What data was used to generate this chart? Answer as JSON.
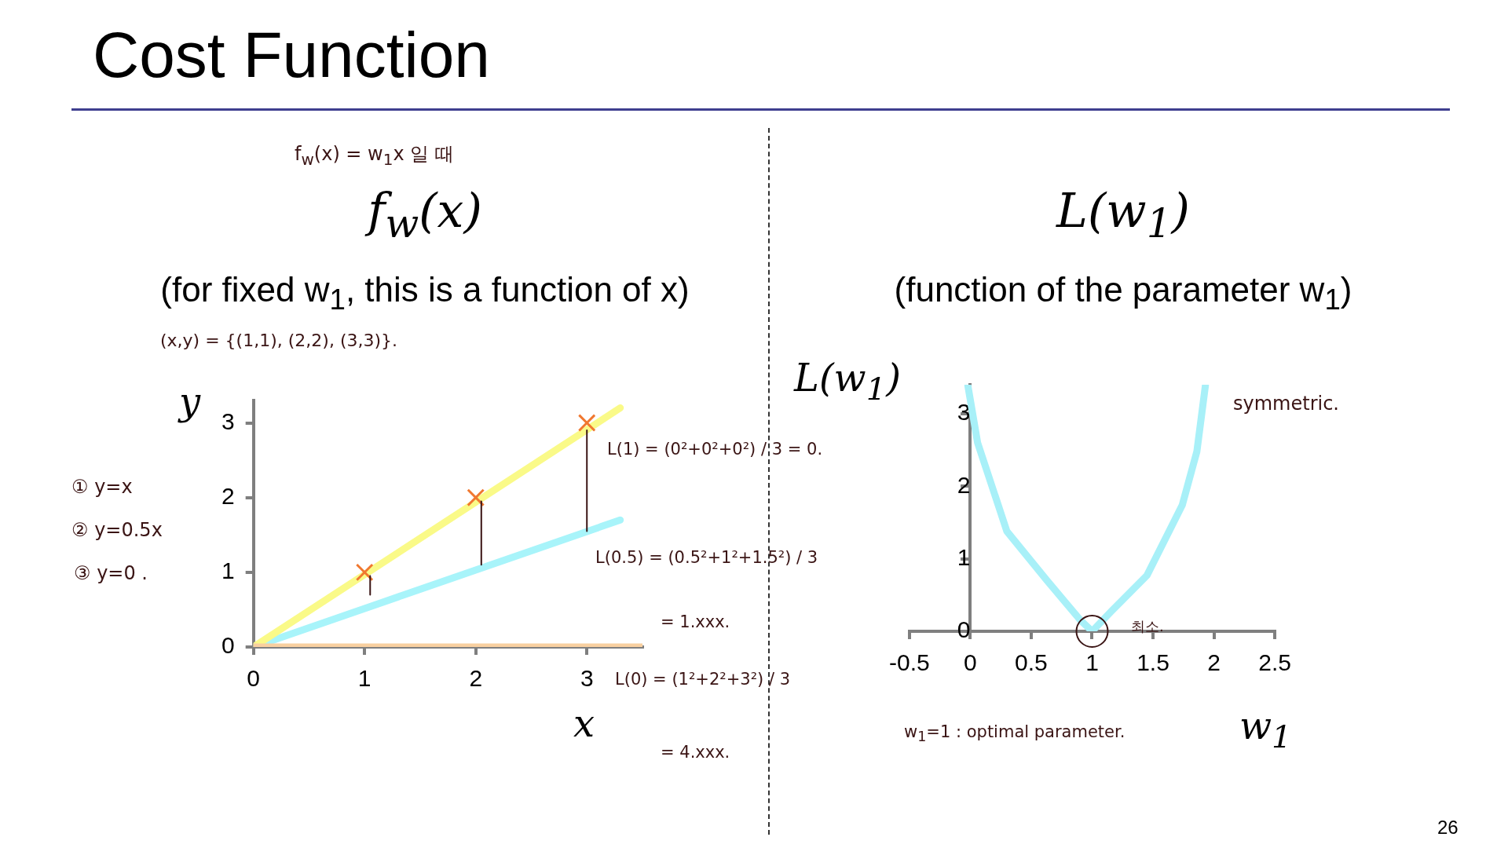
{
  "chart_data": [
    {
      "type": "scatter",
      "title": "f$_{w}$(x)",
      "subtitle": "(for fixed w$_{1}$, this is a function of x)",
      "xlabel": "x",
      "ylabel": "y",
      "xlim": [
        0,
        3.5
      ],
      "ylim": [
        0,
        3.3
      ],
      "xticks": [
        0,
        1,
        2,
        3
      ],
      "yticks": [
        0,
        1,
        2,
        3
      ],
      "annotations": [
        "Cost Function",
        "26",
        "f$_{w}$(x) = w$_{1}$x 일 때",
        "(x,y) = {(1,1), (2,2), (3,3)}.",
        "① y=x",
        "② y=0.5x",
        "③ y=0 .",
        "L(1) = (0²+0²+0²) / 3 = 0.",
        "L(0.5) = (0.5²+1²+1.5²) / 3",
        "= 1.xxx.",
        "L(0) = (1²+2²+3²) / 3",
        "= 4.xxx."
      ],
      "series": [
        {
          "type": "line",
          "color": "#f8d0a0",
          "x": [
            0,
            3.5
          ],
          "values": [
            0,
            0
          ]
        },
        {
          "type": "line",
          "color": "#fafa88",
          "x": [
            0,
            3.3
          ],
          "values": [
            0,
            3.2
          ]
        },
        {
          "type": "line",
          "color": "#a8f4fa",
          "x": [
            0,
            3.3
          ],
          "values": [
            0,
            1.7
          ]
        },
        {
          "type": "line",
          "color": "#3a1414",
          "x": [
            1.05,
            1.05
          ],
          "values": [
            0.95,
            0.7
          ]
        },
        {
          "type": "line",
          "color": "#3a1414",
          "x": [
            2.05,
            2.05
          ],
          "values": [
            1.95,
            1.1
          ]
        },
        {
          "type": "line",
          "color": "#3a1414",
          "x": [
            3,
            3
          ],
          "values": [
            2.9,
            1.55
          ]
        },
        {
          "type": "scatter",
          "color": "#f07830",
          "marker": "cross",
          "x": [
            1,
            2,
            3
          ],
          "values": [
            1,
            2,
            3
          ]
        }
      ]
    },
    {
      "type": "line",
      "title": "L(w$_{1}$)",
      "subtitle": "(function of the parameter w$_{1}$)",
      "xlabel": "w$_{1}$",
      "ylabel": "L(w$_{1}$)",
      "xlim": [
        -0.5,
        2.5
      ],
      "ylim": [
        0,
        3.4
      ],
      "xticks": [
        -0.5,
        0,
        0.5,
        1,
        1.5,
        2,
        2.5
      ],
      "yticks": [
        0,
        1,
        2,
        3
      ],
      "annotations": [
        "symmetric.",
        {
          "text": "최소.",
          "x": 1,
          "y": 0
        },
        "w$_{1}$=1 : optimal parameter."
      ],
      "series": [
        {
          "color": "#a8f0f8",
          "x": [
            -0.02,
            0.06,
            0.3,
            0.63,
            0.9,
            1,
            1.16,
            1.45,
            1.74,
            1.86,
            1.93
          ],
          "values": [
            3.39,
            2.6,
            1.38,
            0.7,
            0.16,
            0,
            0.28,
            0.77,
            1.74,
            2.48,
            3.39
          ]
        }
      ]
    }
  ]
}
